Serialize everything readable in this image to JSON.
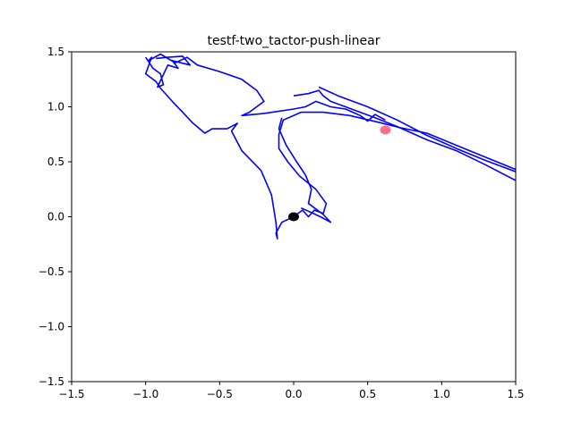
{
  "chart_data": {
    "type": "line",
    "title": "testf-two_tactor-push-linear",
    "xlabel": "",
    "ylabel": "",
    "xlim": [
      -1.5,
      1.5
    ],
    "ylim": [
      -1.5,
      1.5
    ],
    "xticks": [
      -1.5,
      -1.0,
      -0.5,
      0.0,
      0.5,
      1.0,
      1.5
    ],
    "yticks": [
      -1.5,
      -1.0,
      -0.5,
      0.0,
      0.5,
      1.0,
      1.5
    ],
    "xtick_labels": [
      "−1.5",
      "−1.0",
      "−0.5",
      "0.0",
      "0.5",
      "1.0",
      "1.5"
    ],
    "ytick_labels": [
      "−1.5",
      "−1.0",
      "−0.5",
      "0.0",
      "0.5",
      "1.0",
      "1.5"
    ],
    "grid": false,
    "series": [
      {
        "color": "#0000ff",
        "points": [
          [
            0.02,
            0.02
          ],
          [
            0.06,
            0.06
          ],
          [
            0.1,
            0.0
          ],
          [
            0.14,
            0.06
          ],
          [
            0.2,
            0.03
          ],
          [
            0.22,
            0.12
          ],
          [
            0.15,
            0.25
          ],
          [
            0.04,
            0.37
          ],
          [
            -0.04,
            0.5
          ],
          [
            -0.1,
            0.62
          ],
          [
            -0.1,
            0.75
          ],
          [
            -0.07,
            0.88
          ],
          [
            0.05,
            0.95
          ],
          [
            0.2,
            0.95
          ],
          [
            0.38,
            0.92
          ],
          [
            0.57,
            0.86
          ],
          [
            0.72,
            0.81
          ],
          [
            0.9,
            0.76
          ],
          [
            1.1,
            0.65
          ],
          [
            1.3,
            0.54
          ],
          [
            1.5,
            0.43
          ]
        ]
      },
      {
        "color": "#0000ff",
        "points": [
          [
            0.0,
            0.0
          ],
          [
            -0.08,
            -0.05
          ],
          [
            -0.12,
            -0.15
          ],
          [
            -0.11,
            -0.2
          ],
          [
            -0.12,
            -0.05
          ],
          [
            -0.15,
            0.2
          ],
          [
            -0.22,
            0.42
          ],
          [
            -0.35,
            0.6
          ],
          [
            -0.42,
            0.78
          ],
          [
            -0.38,
            0.85
          ],
          [
            -0.45,
            0.8
          ],
          [
            -0.55,
            0.8
          ],
          [
            -0.6,
            0.76
          ],
          [
            -0.68,
            0.85
          ],
          [
            -0.75,
            0.95
          ],
          [
            -0.82,
            1.05
          ],
          [
            -0.9,
            1.17
          ],
          [
            -0.93,
            1.23
          ],
          [
            -1.0,
            1.3
          ],
          [
            -0.96,
            1.45
          ],
          [
            -0.98,
            1.42
          ],
          [
            -0.9,
            1.48
          ],
          [
            -0.8,
            1.4
          ],
          [
            -0.72,
            1.45
          ],
          [
            -0.65,
            1.38
          ],
          [
            -0.5,
            1.32
          ],
          [
            -0.35,
            1.25
          ],
          [
            -0.25,
            1.15
          ],
          [
            -0.2,
            1.05
          ],
          [
            -0.3,
            0.95
          ],
          [
            -0.35,
            0.92
          ],
          [
            -0.2,
            0.94
          ],
          [
            0.0,
            0.98
          ],
          [
            0.08,
            1.0
          ],
          [
            0.15,
            1.05
          ],
          [
            0.25,
            1.0
          ],
          [
            0.35,
            0.98
          ],
          [
            0.45,
            0.92
          ],
          [
            0.5,
            0.87
          ],
          [
            0.55,
            0.93
          ],
          [
            0.62,
            0.88
          ]
        ]
      },
      {
        "color": "#0000ff",
        "points": [
          [
            0.0,
            1.1
          ],
          [
            0.1,
            1.12
          ],
          [
            0.17,
            1.15
          ],
          [
            0.2,
            1.1
          ],
          [
            0.25,
            1.05
          ],
          [
            0.35,
            1.0
          ],
          [
            0.45,
            0.95
          ],
          [
            0.55,
            0.9
          ],
          [
            0.7,
            0.82
          ],
          [
            0.9,
            0.7
          ],
          [
            1.1,
            0.6
          ],
          [
            1.3,
            0.47
          ],
          [
            1.5,
            0.33
          ]
        ]
      },
      {
        "color": "#0000ff",
        "points": [
          [
            0.17,
            1.18
          ],
          [
            0.3,
            1.1
          ],
          [
            0.5,
            1.0
          ],
          [
            0.7,
            0.88
          ],
          [
            0.9,
            0.74
          ],
          [
            1.1,
            0.62
          ],
          [
            1.3,
            0.51
          ],
          [
            1.5,
            0.41
          ]
        ]
      },
      {
        "color": "#0000ff",
        "points": [
          [
            -0.08,
            0.9
          ],
          [
            -0.1,
            0.8
          ],
          [
            -0.05,
            0.65
          ],
          [
            0.02,
            0.5
          ],
          [
            0.08,
            0.38
          ],
          [
            0.12,
            0.25
          ],
          [
            0.1,
            0.12
          ],
          [
            0.2,
            0.02
          ],
          [
            0.25,
            -0.05
          ],
          [
            0.18,
            0.0
          ],
          [
            0.1,
            0.05
          ],
          [
            0.05,
            0.08
          ]
        ]
      },
      {
        "color": "#0000ff",
        "points": [
          [
            -1.0,
            1.45
          ],
          [
            -0.95,
            1.35
          ],
          [
            -0.9,
            1.3
          ],
          [
            -0.88,
            1.2
          ],
          [
            -0.92,
            1.18
          ],
          [
            -0.85,
            1.38
          ],
          [
            -0.78,
            1.35
          ],
          [
            -0.82,
            1.42
          ],
          [
            -0.7,
            1.38
          ],
          [
            -0.75,
            1.46
          ],
          [
            -0.85,
            1.45
          ],
          [
            -0.93,
            1.44
          ]
        ]
      }
    ],
    "markers": [
      {
        "x": 0.0,
        "y": 0.0,
        "color": "#000000",
        "shape": "circle"
      },
      {
        "x": 0.62,
        "y": 0.79,
        "color": "#ff6f8a",
        "shape": "circle"
      }
    ]
  }
}
